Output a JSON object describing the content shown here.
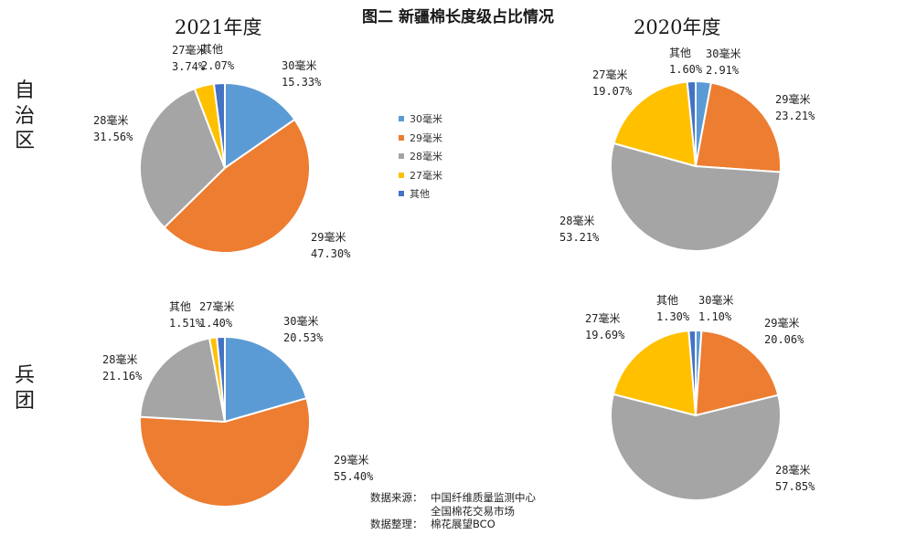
{
  "page_title": "图二 新疆棉长度级占比情况",
  "years": [
    "2021年度",
    "2020年度"
  ],
  "rows": [
    "自治区",
    "兵团"
  ],
  "legend": [
    {
      "name": "30毫米",
      "color": "#5b9bd5"
    },
    {
      "name": "29毫米",
      "color": "#ed7d31"
    },
    {
      "name": "28毫米",
      "color": "#a5a5a5"
    },
    {
      "name": "27毫米",
      "color": "#ffc000"
    },
    {
      "name": "其他",
      "color": "#4472c4"
    }
  ],
  "source": {
    "label1": "数据来源：",
    "line1": "中国纤维质量监测中心",
    "line2": "全国棉花交易市场",
    "label2": "数据整理：",
    "line3": "棉花展望BCO"
  },
  "chart_data": [
    {
      "type": "pie",
      "title": "2021年度",
      "row": "自治区",
      "categories": [
        "30毫米",
        "29毫米",
        "28毫米",
        "27毫米",
        "其他"
      ],
      "values": [
        15.33,
        47.3,
        31.56,
        3.74,
        2.07
      ],
      "labels": [
        "15.33%",
        "47.30%",
        "31.56%",
        "3.74%",
        "2.07%"
      ]
    },
    {
      "type": "pie",
      "title": "2020年度",
      "row": "自治区",
      "categories": [
        "30毫米",
        "29毫米",
        "28毫米",
        "27毫米",
        "其他"
      ],
      "values": [
        2.91,
        23.21,
        53.21,
        19.07,
        1.6
      ],
      "labels": [
        "2.91%",
        "23.21%",
        "53.21%",
        "19.07%",
        "1.60%"
      ]
    },
    {
      "type": "pie",
      "title": "2021年度",
      "row": "兵团",
      "categories": [
        "30毫米",
        "29毫米",
        "28毫米",
        "27毫米",
        "其他"
      ],
      "values": [
        20.53,
        55.4,
        21.16,
        1.4,
        1.51
      ],
      "labels": [
        "20.53%",
        "55.40%",
        "21.16%",
        "1.40%",
        "1.51%"
      ]
    },
    {
      "type": "pie",
      "title": "2020年度",
      "row": "兵团",
      "categories": [
        "30毫米",
        "29毫米",
        "28毫米",
        "27毫米",
        "其他"
      ],
      "values": [
        1.1,
        20.06,
        57.85,
        19.69,
        1.3
      ],
      "labels": [
        "1.10%",
        "20.06%",
        "57.85%",
        "19.69%",
        "1.30%"
      ]
    }
  ]
}
